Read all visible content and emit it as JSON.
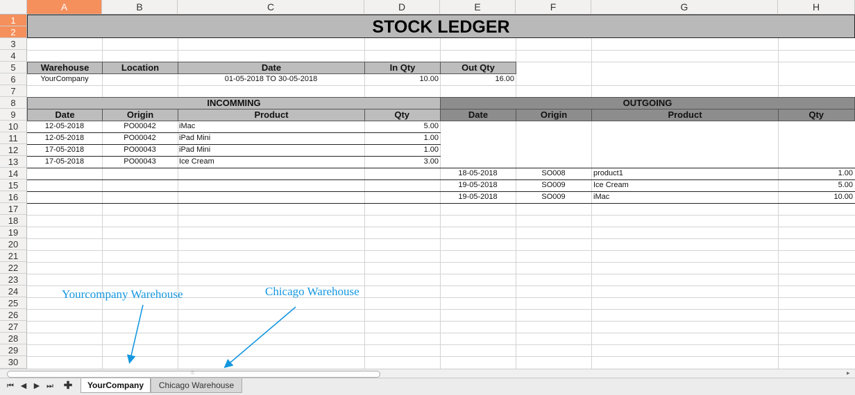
{
  "columns": [
    "A",
    "B",
    "C",
    "D",
    "E",
    "F",
    "G",
    "H"
  ],
  "rows": [
    "1",
    "2",
    "3",
    "4",
    "5",
    "6",
    "7",
    "8",
    "9",
    "10",
    "11",
    "12",
    "13",
    "14",
    "15",
    "16",
    "17",
    "18",
    "19",
    "20",
    "21",
    "22",
    "23",
    "24",
    "25",
    "26",
    "27",
    "28",
    "29",
    "30"
  ],
  "title": "STOCK LEDGER",
  "summary": {
    "headers": [
      "Warehouse",
      "Location",
      "Date",
      "In Qty",
      "Out Qty"
    ],
    "values": [
      "YourCompany",
      "",
      "01-05-2018 TO 30-05-2018",
      "10.00",
      "16.00"
    ]
  },
  "incoming": {
    "label": "INCOMMING",
    "headers": [
      "Date",
      "Origin",
      "Product",
      "Qty"
    ],
    "rows": [
      [
        "12-05-2018",
        "PO00042",
        "iMac",
        "5.00"
      ],
      [
        "12-05-2018",
        "PO00042",
        "iPad Mini",
        "1.00"
      ],
      [
        "17-05-2018",
        "PO00043",
        "iPad Mini",
        "1.00"
      ],
      [
        "17-05-2018",
        "PO00043",
        "Ice Cream",
        "3.00"
      ]
    ]
  },
  "outgoing": {
    "label": "OUTGOING",
    "headers": [
      "Date",
      "Origin",
      "Product",
      "Qty"
    ],
    "rows": [
      [
        "18-05-2018",
        "SO008",
        "product1",
        "1.00"
      ],
      [
        "19-05-2018",
        "SO009",
        "Ice Cream",
        "5.00"
      ],
      [
        "19-05-2018",
        "SO009",
        "iMac",
        "10.00"
      ]
    ]
  },
  "annotations": [
    "Yourcompany Warehouse",
    "Chicago Warehouse"
  ],
  "tabs": [
    "YourCompany",
    "Chicago Warehouse"
  ],
  "active_tab": "YourCompany",
  "colors": {
    "accent": "#f58f5c",
    "annotation": "#1597e0",
    "header_light": "#bdbdbd",
    "header_dark": "#8d8d8d"
  }
}
